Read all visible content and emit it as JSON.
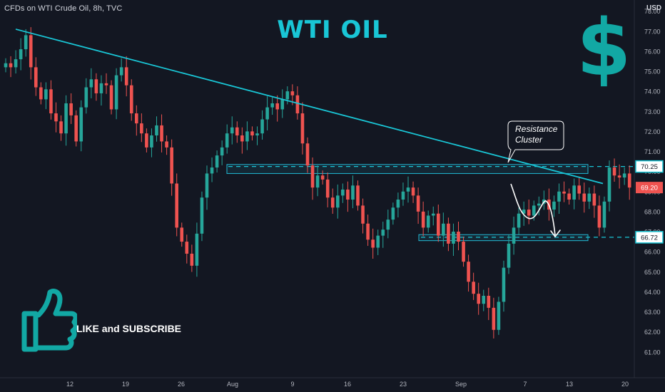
{
  "header": {
    "symbol_text": "CFDs on WTI Crude Oil, 8h, TVC",
    "currency": "USD"
  },
  "overlay": {
    "title": "WTI OIL",
    "dollar_sign": "$",
    "like_text": "LIKE and SUBSCRIBE",
    "callout_line1": "Resistance",
    "callout_line2": "Cluster",
    "thumb_icon": "thumbs-up-icon"
  },
  "colors": {
    "background": "#131722",
    "up": "#26a69a",
    "down": "#ef5350",
    "accent": "#19c6d6",
    "zone": "#22b8d4"
  },
  "chart_data": {
    "type": "candlestick",
    "ylim": [
      60.6,
      78.2
    ],
    "y_ticks": [
      "78.00",
      "77.00",
      "76.00",
      "75.00",
      "74.00",
      "73.00",
      "72.00",
      "71.00",
      "70.00",
      "69.00",
      "68.00",
      "67.00",
      "66.00",
      "65.00",
      "64.00",
      "63.00",
      "62.00",
      "61.00"
    ],
    "x_ticks": [
      "12",
      "19",
      "26",
      "Aug",
      "9",
      "16",
      "23",
      "Sep",
      "7",
      "13",
      "20"
    ],
    "price_labels": [
      {
        "value": 70.25,
        "text": "70.25",
        "style": "outline"
      },
      {
        "value": 69.2,
        "text": "69.20",
        "style": "red"
      },
      {
        "value": 66.72,
        "text": "66.72",
        "style": "outline"
      }
    ],
    "zones": [
      {
        "from": 69.9,
        "to": 70.35,
        "label": "Resistance Cluster"
      },
      {
        "from": 66.55,
        "to": 66.85
      }
    ],
    "dashed_levels": [
      70.25,
      66.72
    ],
    "trendline": [
      {
        "i": 0,
        "p": 77.1
      },
      {
        "i": 140,
        "p": 69.4
      }
    ],
    "closes": [
      75.4,
      75.2,
      75.6,
      76.1,
      76.8,
      75.2,
      74.2,
      73.6,
      74.1,
      72.9,
      72.5,
      71.9,
      73.4,
      72.8,
      71.5,
      73.2,
      74.2,
      74.6,
      73.9,
      74.4,
      74.3,
      73.1,
      74.8,
      75.2,
      74.3,
      72.9,
      72.4,
      71.9,
      71.2,
      71.8,
      72.3,
      71.5,
      71.2,
      69.4,
      67.2,
      66.5,
      65.9,
      65.3,
      66.9,
      68.7,
      69.9,
      70.2,
      70.8,
      71.2,
      71.9,
      72.2,
      71.8,
      71.5,
      72.0,
      71.8,
      71.9,
      72.6,
      73.2,
      73.4,
      73.1,
      73.6,
      74.0,
      73.8,
      72.9,
      71.4,
      70.3,
      69.2,
      69.8,
      69.6,
      68.7,
      68.2,
      68.8,
      69.1,
      68.6,
      69.3,
      68.3,
      67.4,
      66.6,
      66.2,
      66.8,
      67.1,
      67.6,
      68.2,
      68.6,
      69.0,
      69.2,
      68.8,
      68.0,
      67.2,
      67.8,
      67.9,
      66.8,
      67.4,
      66.4,
      67.0,
      66.5,
      65.5,
      64.5,
      63.9,
      63.4,
      63.8,
      63.2,
      62.1,
      63.5,
      65.2,
      66.4,
      67.2,
      67.9,
      68.1,
      67.8,
      68.3,
      68.4,
      68.6,
      68.1,
      68.5,
      69.0,
      68.9,
      68.6,
      69.3,
      68.9,
      68.5,
      68.9,
      68.3,
      67.2,
      68.5,
      70.2,
      69.8,
      69.7,
      69.9,
      69.2
    ],
    "series": [
      {
        "name": "CFDs on WTI Crude Oil, 8h, TVC"
      }
    ]
  }
}
